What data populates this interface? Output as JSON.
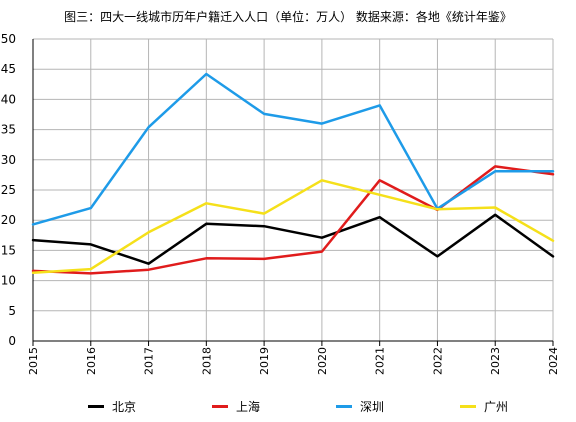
{
  "chart_data": {
    "type": "line",
    "title": "图三：四大一线城市历年户籍迁入人口（单位：万人） 数据来源：各地《统计年鉴》",
    "x": [
      "2015",
      "2016",
      "2017",
      "2018",
      "2019",
      "2020",
      "2021",
      "2022",
      "2023",
      "2024"
    ],
    "ylim": [
      0,
      50
    ],
    "yticks": [
      "0",
      "5",
      "10",
      "15",
      "20",
      "25",
      "30",
      "35",
      "40",
      "45",
      "50"
    ],
    "grid": true,
    "legend_position": "bottom",
    "series": [
      {
        "name": "北京",
        "color": "#000000",
        "values": [
          16.7,
          16.0,
          12.8,
          19.4,
          19.0,
          17.1,
          20.5,
          14.0,
          20.9,
          14.0
        ]
      },
      {
        "name": "上海",
        "color": "#e01c1c",
        "values": [
          11.6,
          11.2,
          11.8,
          13.7,
          13.6,
          14.8,
          26.6,
          21.7,
          28.9,
          27.6
        ]
      },
      {
        "name": "深圳",
        "color": "#1e9be8",
        "values": [
          19.3,
          22.0,
          35.4,
          44.2,
          37.6,
          36.0,
          39.0,
          21.9,
          28.1,
          28.1
        ]
      },
      {
        "name": "广州",
        "color": "#f5e01a",
        "values": [
          11.3,
          11.9,
          18.0,
          22.8,
          21.1,
          26.6,
          24.2,
          21.8,
          22.1,
          16.6
        ]
      }
    ]
  }
}
